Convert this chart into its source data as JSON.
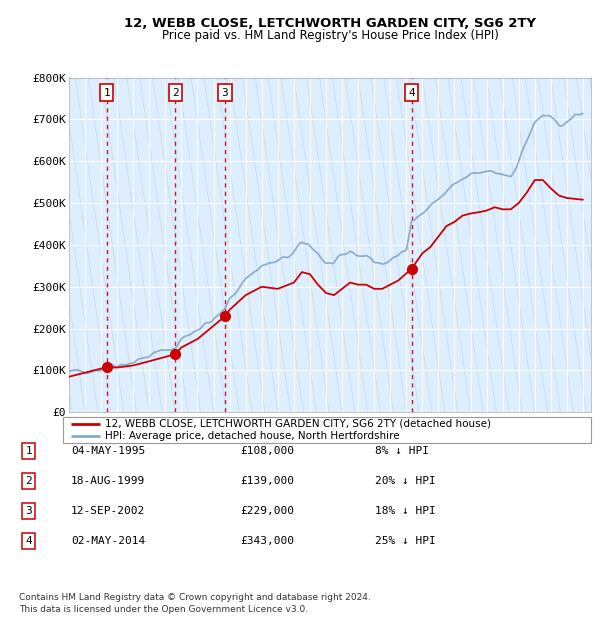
{
  "title_line1": "12, WEBB CLOSE, LETCHWORTH GARDEN CITY, SG6 2TY",
  "title_line2": "Price paid vs. HM Land Registry's House Price Index (HPI)",
  "ylim": [
    0,
    800000
  ],
  "yticks": [
    0,
    100000,
    200000,
    300000,
    400000,
    500000,
    600000,
    700000,
    800000
  ],
  "ytick_labels": [
    "£0",
    "£100K",
    "£200K",
    "£300K",
    "£400K",
    "£500K",
    "£600K",
    "£700K",
    "£800K"
  ],
  "transactions": [
    {
      "year": 1995.35,
      "price": 108000,
      "label": "1"
    },
    {
      "year": 1999.63,
      "price": 139000,
      "label": "2"
    },
    {
      "year": 2002.7,
      "price": 229000,
      "label": "3"
    },
    {
      "year": 2014.33,
      "price": 343000,
      "label": "4"
    }
  ],
  "transaction_color": "#cc0000",
  "vline_color": "#cc0000",
  "hpi_color": "#88aacc",
  "legend_label_price": "12, WEBB CLOSE, LETCHWORTH GARDEN CITY, SG6 2TY (detached house)",
  "legend_label_hpi": "HPI: Average price, detached house, North Hertfordshire",
  "table_data": [
    [
      "1",
      "04-MAY-1995",
      "£108,000",
      "8% ↓ HPI"
    ],
    [
      "2",
      "18-AUG-1999",
      "£139,000",
      "20% ↓ HPI"
    ],
    [
      "3",
      "12-SEP-2002",
      "£229,000",
      "18% ↓ HPI"
    ],
    [
      "4",
      "02-MAY-2014",
      "£343,000",
      "25% ↓ HPI"
    ]
  ],
  "footer": "Contains HM Land Registry data © Crown copyright and database right 2024.\nThis data is licensed under the Open Government Licence v3.0.",
  "background_plot": "#ddeeff",
  "hatch_color": "#c0d4e8",
  "grid_color": "#ffffff",
  "xmin": 1993,
  "xmax": 2025.5
}
